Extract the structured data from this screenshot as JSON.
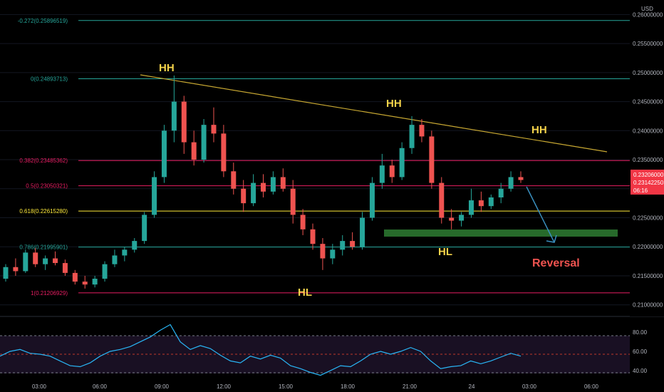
{
  "currency": "USD",
  "price_axis": {
    "ticks": [
      "0.26000000",
      "0.25500000",
      "0.25000000",
      "0.24500000",
      "0.24000000",
      "0.23500000",
      "0.23000000",
      "0.22500000",
      "0.22000000",
      "0.21500000",
      "0.21000000"
    ],
    "tick_values": [
      0.26,
      0.255,
      0.25,
      0.245,
      0.24,
      0.235,
      0.23,
      0.225,
      0.22,
      0.215,
      0.21
    ],
    "badge_price": "0.23206000",
    "badge_price2": "0.23142250",
    "badge_countdown": "06:16"
  },
  "time_axis": {
    "ticks": [
      "03:00",
      "06:00",
      "09:00",
      "12:00",
      "15:00",
      "18:00",
      "21:00",
      "24",
      "03:00",
      "06:00"
    ]
  },
  "fib_levels": [
    {
      "label": "-0.272(0.25896519)",
      "value": 0.25896519,
      "color": "#26a69a"
    },
    {
      "label": "0(0.24893713)",
      "value": 0.24893713,
      "color": "#26a69a"
    },
    {
      "label": "0.382(0.23485362)",
      "value": 0.23485362,
      "color": "#e91e63"
    },
    {
      "label": "0.5(0.23050321)",
      "value": 0.23050321,
      "color": "#e91e63"
    },
    {
      "label": "0.618(0.22615280)",
      "value": 0.2261528,
      "color": "#ffeb3b"
    },
    {
      "label": "0.786(0.21995901)",
      "value": 0.21995901,
      "color": "#26a69a"
    },
    {
      "label": "1(0.21206929)",
      "value": 0.21206929,
      "color": "#e91e63"
    }
  ],
  "annotations": {
    "hh1": "HH",
    "hh2": "HH",
    "hh3": "HH",
    "hl1": "HL",
    "hl2": "HL",
    "reversal": "Reversal"
  },
  "rsi_axis": {
    "ticks": [
      "80.00",
      "60.00",
      "40.00"
    ],
    "tick_values": [
      80,
      60,
      40
    ]
  },
  "chart_data": {
    "type": "candlestick",
    "title": "",
    "series": [
      {
        "name": "price",
        "values": [
          [
            0.2145,
            0.217,
            0.214,
            0.2165
          ],
          [
            0.2165,
            0.218,
            0.215,
            0.2158
          ],
          [
            0.2158,
            0.2195,
            0.2155,
            0.219
          ],
          [
            0.219,
            0.2198,
            0.2165,
            0.217
          ],
          [
            0.217,
            0.2185,
            0.216,
            0.218
          ],
          [
            0.218,
            0.2192,
            0.2168,
            0.2172
          ],
          [
            0.2172,
            0.2178,
            0.215,
            0.2155
          ],
          [
            0.2155,
            0.216,
            0.2135,
            0.214
          ],
          [
            0.214,
            0.215,
            0.2128,
            0.2135
          ],
          [
            0.2135,
            0.215,
            0.213,
            0.2145
          ],
          [
            0.2145,
            0.2175,
            0.214,
            0.217
          ],
          [
            0.217,
            0.2195,
            0.2165,
            0.2185
          ],
          [
            0.2185,
            0.22,
            0.2175,
            0.2195
          ],
          [
            0.2195,
            0.2215,
            0.219,
            0.221
          ],
          [
            0.221,
            0.226,
            0.2205,
            0.2255
          ],
          [
            0.2255,
            0.233,
            0.225,
            0.232
          ],
          [
            0.232,
            0.241,
            0.231,
            0.24
          ],
          [
            0.24,
            0.2495,
            0.238,
            0.245
          ],
          [
            0.245,
            0.246,
            0.236,
            0.238
          ],
          [
            0.238,
            0.24,
            0.234,
            0.235
          ],
          [
            0.235,
            0.242,
            0.2345,
            0.241
          ],
          [
            0.241,
            0.244,
            0.238,
            0.2395
          ],
          [
            0.2395,
            0.241,
            0.232,
            0.233
          ],
          [
            0.233,
            0.2345,
            0.229,
            0.23
          ],
          [
            0.23,
            0.2315,
            0.226,
            0.2275
          ],
          [
            0.2275,
            0.2325,
            0.227,
            0.231
          ],
          [
            0.231,
            0.2325,
            0.2285,
            0.2295
          ],
          [
            0.2295,
            0.233,
            0.229,
            0.232
          ],
          [
            0.232,
            0.2335,
            0.2295,
            0.23
          ],
          [
            0.23,
            0.2315,
            0.224,
            0.2255
          ],
          [
            0.2255,
            0.2265,
            0.222,
            0.223
          ],
          [
            0.223,
            0.224,
            0.2195,
            0.2205
          ],
          [
            0.2205,
            0.2215,
            0.216,
            0.218
          ],
          [
            0.218,
            0.2205,
            0.217,
            0.2195
          ],
          [
            0.2195,
            0.222,
            0.2185,
            0.221
          ],
          [
            0.221,
            0.2225,
            0.2195,
            0.22
          ],
          [
            0.22,
            0.226,
            0.2195,
            0.225
          ],
          [
            0.225,
            0.232,
            0.2245,
            0.231
          ],
          [
            0.231,
            0.236,
            0.23,
            0.234
          ],
          [
            0.234,
            0.235,
            0.231,
            0.232
          ],
          [
            0.232,
            0.238,
            0.2315,
            0.237
          ],
          [
            0.237,
            0.2425,
            0.236,
            0.241
          ],
          [
            0.241,
            0.242,
            0.238,
            0.239
          ],
          [
            0.239,
            0.24,
            0.23,
            0.231
          ],
          [
            0.231,
            0.232,
            0.224,
            0.225
          ],
          [
            0.225,
            0.2265,
            0.223,
            0.2245
          ],
          [
            0.2245,
            0.226,
            0.2235,
            0.2255
          ],
          [
            0.2255,
            0.23,
            0.225,
            0.228
          ],
          [
            0.228,
            0.2295,
            0.226,
            0.227
          ],
          [
            0.227,
            0.229,
            0.2265,
            0.2285
          ],
          [
            0.2285,
            0.231,
            0.2275,
            0.23
          ],
          [
            0.23,
            0.233,
            0.2295,
            0.232
          ],
          [
            0.232,
            0.233,
            0.231,
            0.2315
          ]
        ]
      },
      {
        "name": "rsi",
        "values": [
          55,
          60,
          62,
          58,
          57,
          55,
          50,
          45,
          44,
          48,
          55,
          60,
          62,
          65,
          70,
          75,
          82,
          88,
          70,
          62,
          66,
          63,
          56,
          50,
          48,
          55,
          52,
          56,
          53,
          45,
          42,
          38,
          35,
          40,
          45,
          44,
          50,
          57,
          60,
          57,
          60,
          64,
          60,
          50,
          42,
          44,
          45,
          50,
          47,
          50,
          54,
          58,
          55
        ]
      }
    ],
    "ylim": [
      0.208,
      0.2625
    ],
    "rsi_ylim": [
      25,
      92
    ],
    "grid": true
  }
}
